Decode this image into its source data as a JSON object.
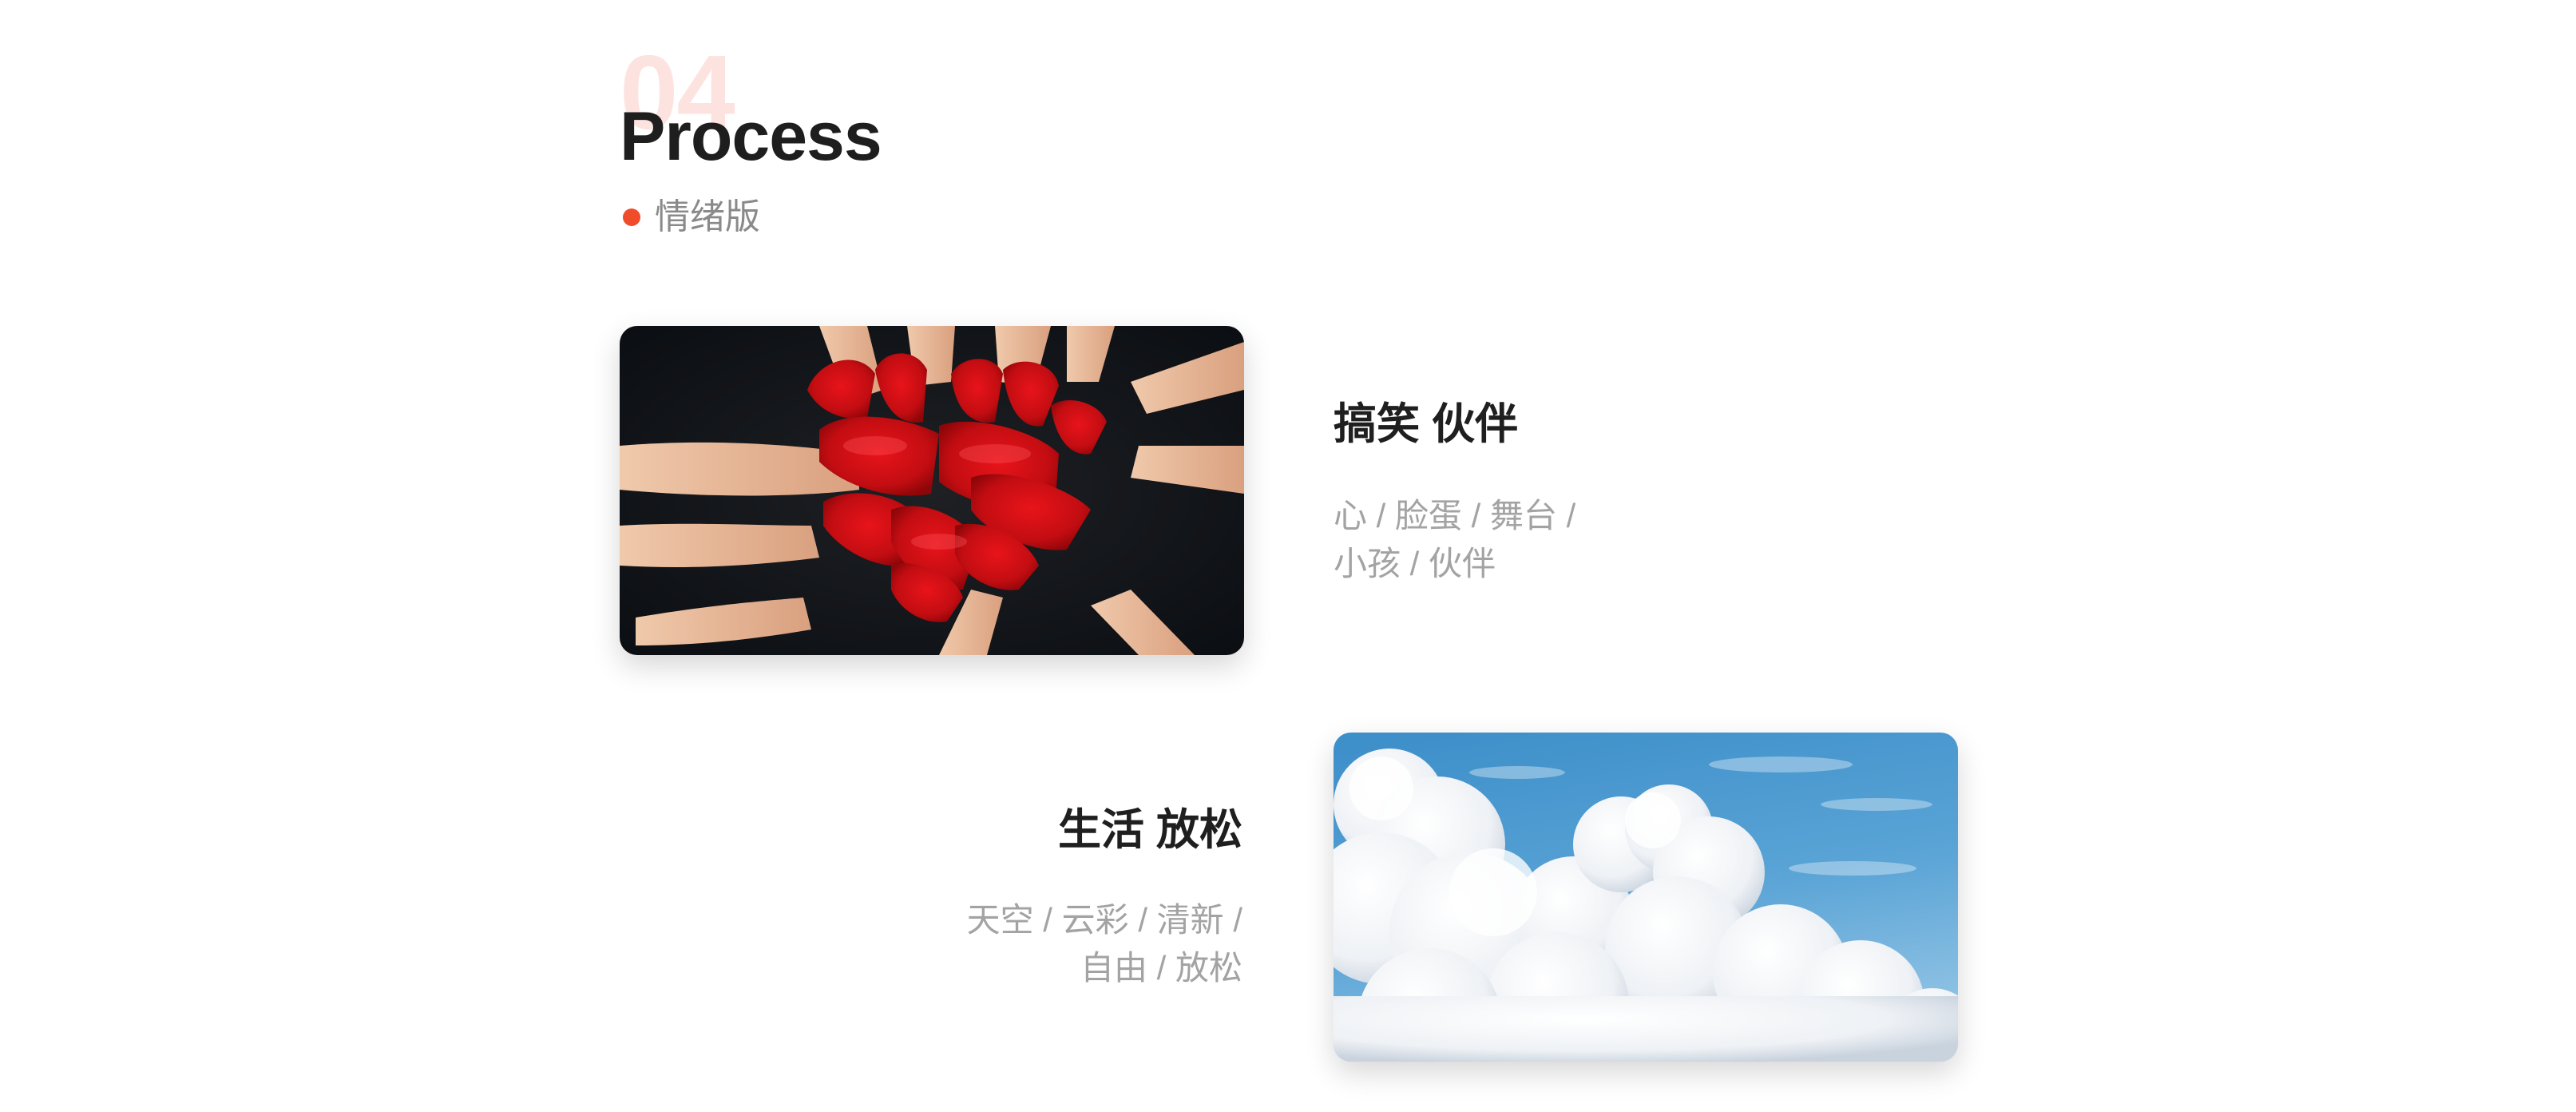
{
  "header": {
    "number": "04",
    "title": "Process",
    "subtitle": "情绪版",
    "accent_color": "#f04b2a"
  },
  "items": [
    {
      "image": "red-painted-hands-heart-photo",
      "title": "搞笑 伙伴",
      "tags_line1": "心 / 脸蛋 / 舞台 /",
      "tags_line2": "小孩 / 伙伴"
    },
    {
      "image": "blue-sky-clouds-photo",
      "title": "生活 放松",
      "tags_line1": "天空 / 云彩 / 清新 /",
      "tags_line2": "自由 / 放松"
    }
  ]
}
